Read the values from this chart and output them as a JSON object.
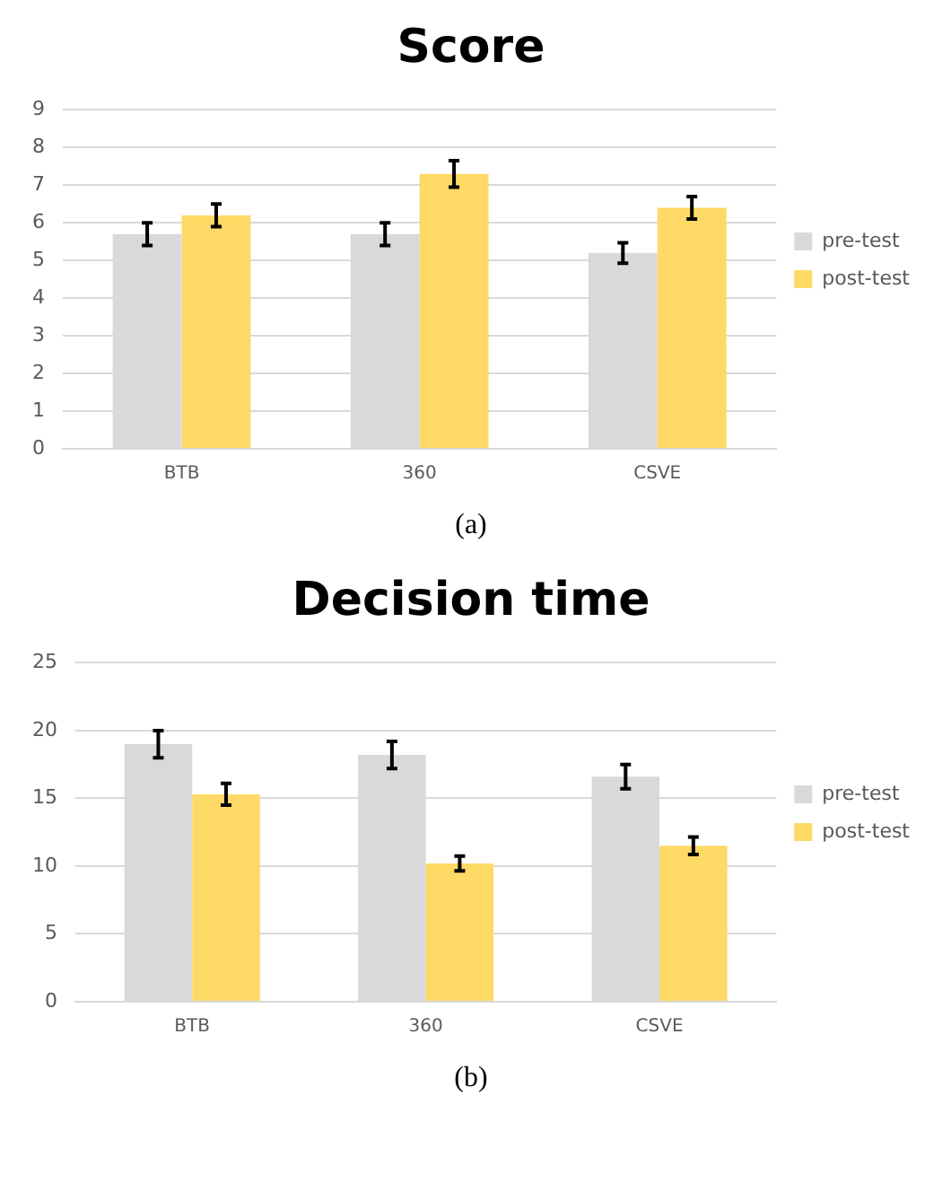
{
  "chart_data": [
    {
      "type": "bar",
      "title": "Score",
      "categories": [
        "BTB",
        "360",
        "CSVE"
      ],
      "series": [
        {
          "name": "pre-test",
          "color": "#d9d9d9",
          "values": [
            5.7,
            5.7,
            5.2
          ],
          "errors": [
            0.3,
            0.3,
            0.27
          ]
        },
        {
          "name": "post-test",
          "color": "#ffd966",
          "values": [
            6.2,
            7.3,
            6.4
          ],
          "errors": [
            0.3,
            0.35,
            0.3
          ]
        }
      ],
      "ylim": [
        0,
        9
      ],
      "yticks": [
        0,
        1,
        2,
        3,
        4,
        5,
        6,
        7,
        8,
        9
      ],
      "grid": "y",
      "legend": "right",
      "annotations": [
        "(a)"
      ]
    },
    {
      "type": "bar",
      "title": "Decision time",
      "categories": [
        "BTB",
        "360",
        "CSVE"
      ],
      "series": [
        {
          "name": "pre-test",
          "color": "#d9d9d9",
          "values": [
            19,
            18.2,
            16.6
          ],
          "errors": [
            1.0,
            1.0,
            0.9
          ]
        },
        {
          "name": "post-test",
          "color": "#ffd966",
          "values": [
            15.3,
            10.2,
            11.5
          ],
          "errors": [
            0.8,
            0.55,
            0.65
          ]
        }
      ],
      "ylim": [
        0,
        25
      ],
      "yticks": [
        0,
        5,
        10,
        15,
        20,
        25
      ],
      "grid": "y",
      "legend": "right",
      "annotations": [
        "(b)"
      ]
    }
  ]
}
